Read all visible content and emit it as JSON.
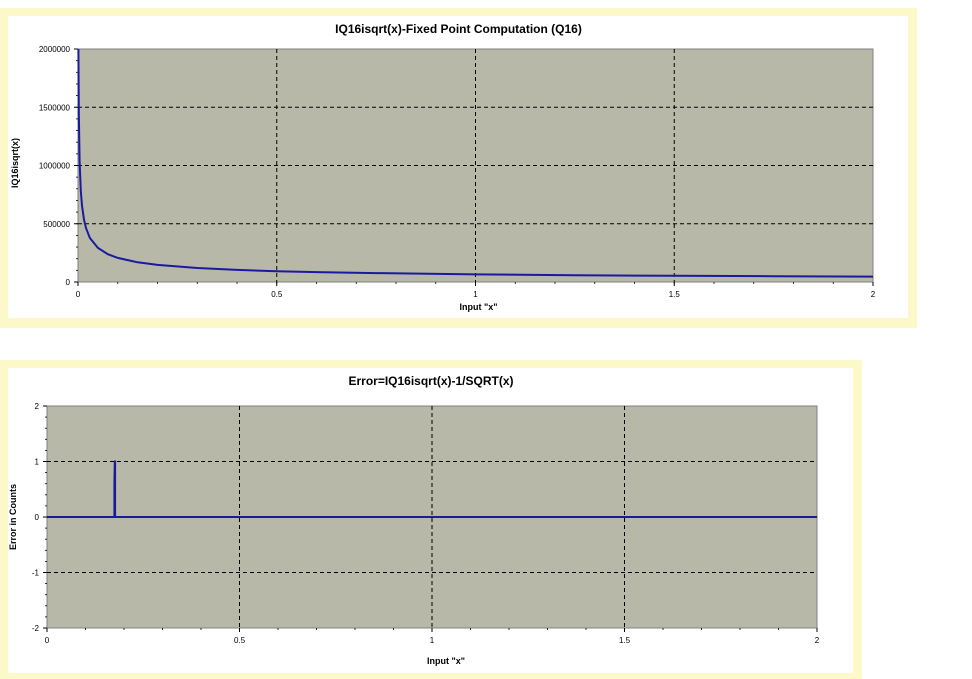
{
  "charts": [
    {
      "title": "IQ16isqrt(x)-Fixed Point Computation (Q16)",
      "xlabel": "Input \"x\"",
      "ylabel": "IQ16isqrt(x)",
      "plot_bg": "#b8b8a8",
      "line_color": "#1a1aa0",
      "x_ticks": [
        "0",
        "0.5",
        "1",
        "1.5",
        "2"
      ],
      "y_ticks": [
        "0",
        "500000",
        "1000000",
        "1500000",
        "2000000"
      ]
    },
    {
      "title": "Error=IQ16isqrt(x)-1/SQRT(x)",
      "xlabel": "Input \"x\"",
      "ylabel": "Error in Counts",
      "plot_bg": "#b8b8a8",
      "line_color": "#1a1aa0",
      "x_ticks": [
        "0",
        "0.5",
        "1",
        "1.5",
        "2"
      ],
      "y_ticks": [
        "-2",
        "-1",
        "0",
        "1",
        "2"
      ]
    }
  ],
  "chart_data": [
    {
      "type": "line",
      "title": "IQ16isqrt(x)-Fixed Point Computation (Q16)",
      "xlabel": "Input \"x\"",
      "ylabel": "IQ16isqrt(x)",
      "xlim": [
        0,
        2
      ],
      "ylim": [
        0,
        2000000
      ],
      "grid": true,
      "x": [
        0.001,
        0.002,
        0.004,
        0.007,
        0.01,
        0.015,
        0.02,
        0.03,
        0.05,
        0.075,
        0.1,
        0.15,
        0.2,
        0.3,
        0.4,
        0.5,
        0.6,
        0.75,
        1.0,
        1.25,
        1.5,
        1.75,
        2.0
      ],
      "values": [
        2000000,
        1465000,
        1036000,
        783000,
        655000,
        535000,
        463000,
        378000,
        293000,
        239000,
        207000,
        169000,
        147000,
        120000,
        104000,
        93000,
        85000,
        76000,
        65536,
        58600,
        53500,
        49500,
        46300
      ],
      "series": [
        {
          "name": "",
          "values": [
            2000000,
            1465000,
            1036000,
            783000,
            655000,
            535000,
            463000,
            378000,
            293000,
            239000,
            207000,
            169000,
            147000,
            120000,
            104000,
            93000,
            85000,
            76000,
            65536,
            58600,
            53500,
            49500,
            46300
          ]
        }
      ]
    },
    {
      "type": "line",
      "title": "Error=IQ16isqrt(x)-1/SQRT(x)",
      "xlabel": "Input \"x\"",
      "ylabel": "Error in Counts",
      "xlim": [
        0,
        2
      ],
      "ylim": [
        -2,
        2
      ],
      "grid": true,
      "x": [
        0,
        0.175,
        0.175,
        0.176,
        0.177,
        0.177,
        2
      ],
      "values": [
        0,
        0,
        0.6,
        1,
        1,
        0,
        0
      ],
      "series": [
        {
          "name": "",
          "values": [
            0,
            0,
            0.6,
            1,
            1,
            0,
            0
          ]
        }
      ]
    }
  ]
}
